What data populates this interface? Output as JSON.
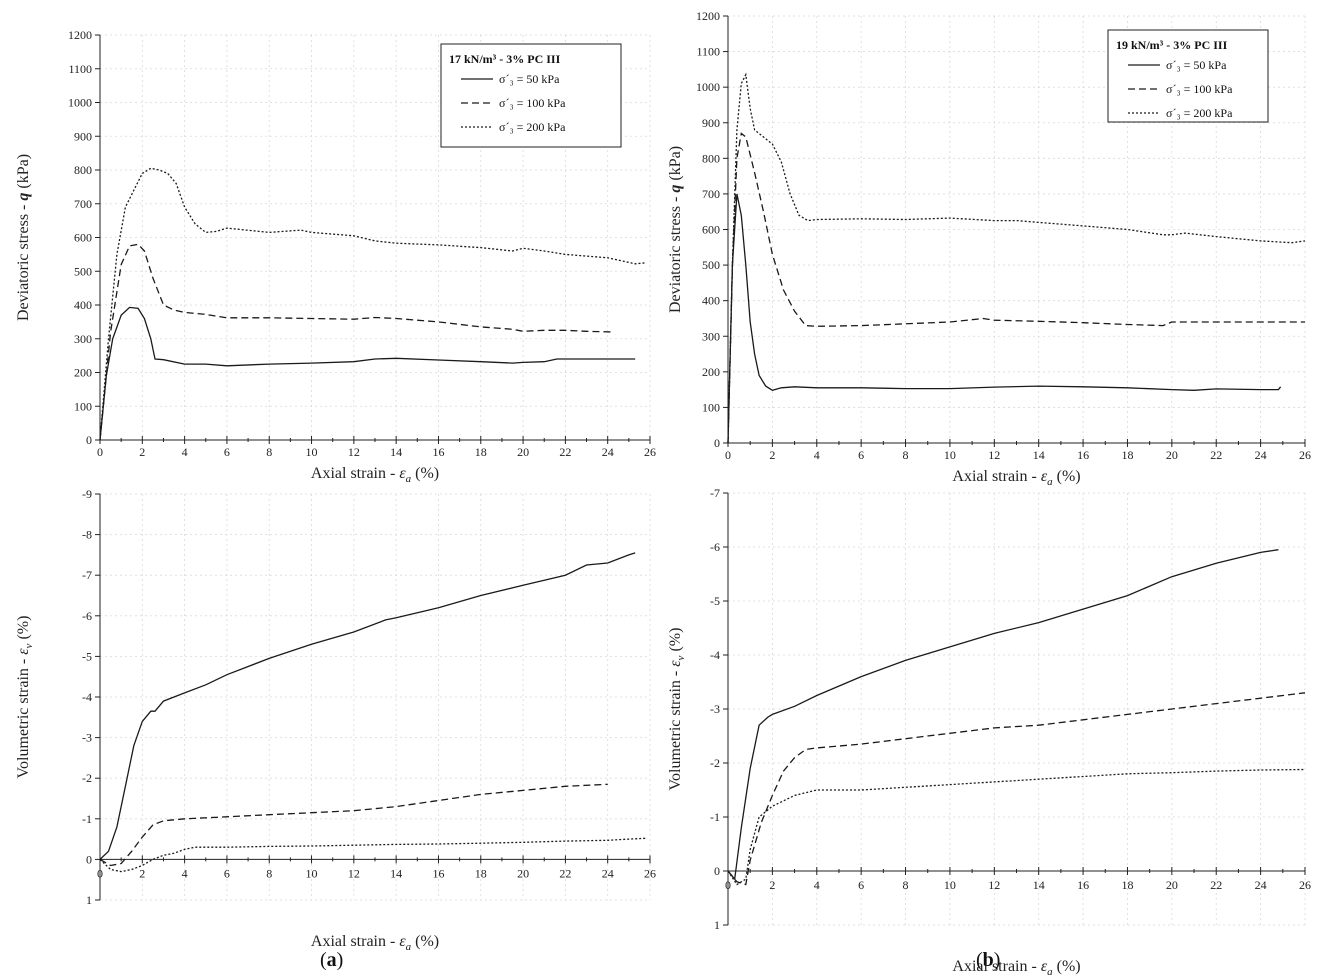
{
  "figure": {
    "captions": [
      "(a)",
      "(b)"
    ],
    "caption_letters": [
      "a",
      "b"
    ]
  },
  "chart_data": [
    {
      "id": "a-top",
      "type": "line",
      "xlabel": "Axial strain - ε_a (%)",
      "ylabel": "Deviatoric stress - q (kPa)",
      "xlim": [
        0,
        26
      ],
      "ylim": [
        0,
        1200
      ],
      "xticks": [
        0,
        2,
        4,
        6,
        8,
        10,
        12,
        14,
        16,
        18,
        20,
        22,
        24,
        26
      ],
      "yticks": [
        0,
        100,
        200,
        300,
        400,
        500,
        600,
        700,
        800,
        900,
        1000,
        1100,
        1200
      ],
      "legend": {
        "title": "17 kN/m³ -  3% PC III",
        "position": "top-right"
      },
      "series": [
        {
          "name": "σ´₃ = 50 kPa",
          "dash": "solid",
          "x": [
            0,
            0.3,
            0.6,
            1.0,
            1.4,
            1.8,
            2.1,
            2.4,
            2.6,
            3.0,
            4.0,
            5.0,
            6.0,
            8.0,
            10.0,
            12.0,
            13.0,
            14.0,
            16.0,
            18.0,
            19.5,
            20.0,
            21.0,
            21.6,
            22.0,
            24.0,
            25.3
          ],
          "y": [
            0,
            190,
            300,
            370,
            393,
            390,
            360,
            300,
            240,
            238,
            225,
            225,
            220,
            225,
            228,
            232,
            240,
            242,
            237,
            232,
            228,
            230,
            232,
            240,
            240,
            240,
            240
          ]
        },
        {
          "name": "σ´₃ = 100 kPa",
          "dash": "dashed",
          "x": [
            0,
            0.5,
            1.0,
            1.4,
            1.8,
            2.1,
            2.5,
            3.0,
            3.5,
            4.0,
            5.0,
            6.0,
            8.0,
            10.0,
            12.0,
            13.0,
            14.0,
            16.0,
            18.0,
            19.5,
            20.0,
            21.0,
            22.0,
            23.0,
            24.2
          ],
          "y": [
            0,
            320,
            520,
            575,
            580,
            560,
            480,
            400,
            385,
            378,
            372,
            362,
            362,
            360,
            358,
            363,
            360,
            350,
            335,
            328,
            322,
            325,
            325,
            322,
            320
          ]
        },
        {
          "name": "σ´₃ = 200 kPa",
          "dash": "dotted",
          "x": [
            0,
            0.4,
            0.8,
            1.2,
            1.6,
            2.0,
            2.4,
            2.8,
            3.2,
            3.6,
            4.0,
            4.5,
            5.0,
            5.5,
            6.0,
            8.0,
            9.5,
            10.0,
            12.0,
            13.0,
            14.0,
            16.0,
            18.0,
            19.5,
            20.0,
            21.0,
            22.0,
            24.0,
            25.3,
            25.8
          ],
          "y": [
            0,
            300,
            550,
            690,
            740,
            790,
            805,
            800,
            790,
            760,
            690,
            640,
            615,
            618,
            628,
            615,
            622,
            615,
            605,
            590,
            583,
            578,
            570,
            560,
            568,
            560,
            550,
            540,
            522,
            525
          ]
        }
      ]
    },
    {
      "id": "b-top",
      "type": "line",
      "xlabel": "Axial strain - ε_a (%)",
      "ylabel": "Deviatoric stress - q (kPa)",
      "xlim": [
        0,
        26
      ],
      "ylim": [
        0,
        1200
      ],
      "xticks": [
        0,
        2,
        4,
        6,
        8,
        10,
        12,
        14,
        16,
        18,
        20,
        22,
        24,
        26
      ],
      "yticks": [
        0,
        100,
        200,
        300,
        400,
        500,
        600,
        700,
        800,
        900,
        1000,
        1100,
        1200
      ],
      "legend": {
        "title": "19 kN/m³ -  3% PC III",
        "position": "top-right"
      },
      "series": [
        {
          "name": "σ´₃ = 50 kPa",
          "dash": "solid",
          "x": [
            0,
            0.2,
            0.4,
            0.6,
            0.8,
            1.0,
            1.2,
            1.4,
            1.7,
            2.0,
            2.4,
            3.0,
            4.0,
            6.0,
            8.0,
            10.0,
            12.0,
            14.0,
            16.0,
            18.0,
            20.0,
            21.0,
            22.0,
            24.0,
            24.8,
            24.9
          ],
          "y": [
            0,
            500,
            700,
            640,
            500,
            340,
            250,
            190,
            160,
            148,
            155,
            158,
            155,
            155,
            153,
            153,
            157,
            160,
            158,
            155,
            150,
            148,
            152,
            150,
            150,
            158
          ]
        },
        {
          "name": "σ´₃ = 100 kPa",
          "dash": "dashed",
          "x": [
            0,
            0.2,
            0.4,
            0.6,
            0.8,
            1.2,
            1.6,
            2.0,
            2.5,
            3.0,
            3.5,
            4.0,
            6.0,
            8.0,
            10.0,
            11.5,
            12.0,
            14.0,
            16.0,
            18.0,
            19.6,
            20.0,
            22.0,
            24.0,
            26.0
          ],
          "y": [
            0,
            500,
            800,
            870,
            860,
            760,
            650,
            530,
            430,
            370,
            330,
            328,
            330,
            335,
            340,
            350,
            345,
            342,
            338,
            333,
            330,
            340,
            340,
            340,
            340
          ]
        },
        {
          "name": "σ´₃ = 200 kPa",
          "dash": "dotted",
          "x": [
            0,
            0.2,
            0.4,
            0.6,
            0.8,
            1.0,
            1.2,
            1.6,
            2.0,
            2.4,
            2.8,
            3.2,
            3.6,
            4.0,
            6.0,
            8.0,
            10.0,
            12.0,
            13.0,
            14.0,
            16.0,
            18.0,
            19.6,
            20.0,
            20.6,
            22.0,
            24.0,
            25.4,
            26.0
          ],
          "y": [
            0,
            500,
            880,
            1010,
            1035,
            940,
            880,
            860,
            840,
            790,
            700,
            640,
            625,
            628,
            630,
            628,
            632,
            625,
            625,
            620,
            610,
            600,
            585,
            585,
            590,
            580,
            568,
            563,
            568
          ]
        }
      ]
    },
    {
      "id": "a-bottom",
      "type": "line",
      "xlabel": "Axial strain - ε_a (%)",
      "ylabel": "Volumetric strain - ε_v (%)",
      "xlim": [
        0,
        26
      ],
      "ylim": [
        1,
        -9
      ],
      "y_inverted": true,
      "xticks": [
        0,
        2,
        4,
        6,
        8,
        10,
        12,
        14,
        16,
        18,
        20,
        22,
        24,
        26
      ],
      "yticks": [
        1,
        0,
        -1,
        -2,
        -3,
        -4,
        -5,
        -6,
        -7,
        -8,
        -9
      ],
      "series": [
        {
          "name": "σ´₃ = 50 kPa",
          "dash": "solid",
          "x": [
            0,
            0.4,
            0.8,
            1.2,
            1.6,
            2.0,
            2.4,
            2.6,
            3.0,
            3.5,
            4.0,
            5.0,
            6.0,
            8.0,
            10.0,
            12.0,
            13.5,
            14.0,
            16.0,
            18.0,
            20.0,
            22.0,
            23.0,
            24.0,
            25.0,
            25.3
          ],
          "y": [
            0,
            -0.2,
            -0.8,
            -1.8,
            -2.8,
            -3.4,
            -3.65,
            -3.65,
            -3.9,
            -4.0,
            -4.1,
            -4.3,
            -4.55,
            -4.95,
            -5.3,
            -5.6,
            -5.9,
            -5.95,
            -6.2,
            -6.5,
            -6.75,
            -7.0,
            -7.25,
            -7.3,
            -7.5,
            -7.55
          ]
        },
        {
          "name": "σ´₃ = 100 kPa",
          "dash": "dashed",
          "x": [
            0,
            0.5,
            1.0,
            1.5,
            2.0,
            2.5,
            3.0,
            4.0,
            6.0,
            8.0,
            10.0,
            12.0,
            14.0,
            16.0,
            18.0,
            20.0,
            22.0,
            24.0
          ],
          "y": [
            0,
            0.15,
            0.1,
            -0.2,
            -0.55,
            -0.85,
            -0.95,
            -1.0,
            -1.05,
            -1.1,
            -1.15,
            -1.2,
            -1.3,
            -1.45,
            -1.6,
            -1.7,
            -1.8,
            -1.85
          ]
        },
        {
          "name": "σ´₃ = 200 kPa",
          "dash": "dotted",
          "x": [
            0,
            0.5,
            1.0,
            1.5,
            2.0,
            2.5,
            3.0,
            3.5,
            4.0,
            4.5,
            6.0,
            8.0,
            10.0,
            12.0,
            14.0,
            16.0,
            18.0,
            20.0,
            22.0,
            24.0,
            25.0,
            25.8
          ],
          "y": [
            0,
            0.25,
            0.3,
            0.25,
            0.15,
            0.0,
            -0.1,
            -0.15,
            -0.25,
            -0.3,
            -0.3,
            -0.32,
            -0.33,
            -0.35,
            -0.37,
            -0.38,
            -0.4,
            -0.42,
            -0.45,
            -0.47,
            -0.5,
            -0.52
          ]
        }
      ]
    },
    {
      "id": "b-bottom",
      "type": "line",
      "xlabel": "Axial strain - ε_a (%)",
      "ylabel": "Volumetric strain - ε_v (%)",
      "xlim": [
        0,
        26
      ],
      "ylim": [
        1,
        -7
      ],
      "y_inverted": true,
      "xticks": [
        0,
        2,
        4,
        6,
        8,
        10,
        12,
        14,
        16,
        18,
        20,
        22,
        24,
        26
      ],
      "yticks": [
        1,
        0,
        -1,
        -2,
        -3,
        -4,
        -5,
        -6,
        -7
      ],
      "series": [
        {
          "name": "σ´₃ = 50 kPa",
          "dash": "solid",
          "x": [
            0,
            0.3,
            0.6,
            1.0,
            1.4,
            1.8,
            2.0,
            3.0,
            4.0,
            6.0,
            8.0,
            10.0,
            12.0,
            14.0,
            16.0,
            18.0,
            20.0,
            22.0,
            24.0,
            24.8
          ],
          "y": [
            0,
            0.15,
            -0.8,
            -1.9,
            -2.7,
            -2.85,
            -2.9,
            -3.05,
            -3.25,
            -3.6,
            -3.9,
            -4.15,
            -4.4,
            -4.6,
            -4.85,
            -5.1,
            -5.45,
            -5.7,
            -5.9,
            -5.95
          ]
        },
        {
          "name": "σ´₃ = 100 kPa",
          "dash": "dashed",
          "x": [
            0,
            0.4,
            0.8,
            1.0,
            1.5,
            2.0,
            2.5,
            3.0,
            3.5,
            4.0,
            6.0,
            8.0,
            10.0,
            12.0,
            14.0,
            16.0,
            18.0,
            20.0,
            22.0,
            24.0,
            26.0
          ],
          "y": [
            0,
            0.2,
            0.25,
            -0.2,
            -0.9,
            -1.4,
            -1.85,
            -2.1,
            -2.25,
            -2.28,
            -2.35,
            -2.45,
            -2.55,
            -2.65,
            -2.7,
            -2.8,
            -2.9,
            -3.0,
            -3.1,
            -3.2,
            -3.3
          ]
        },
        {
          "name": "σ´₃ = 200 kPa",
          "dash": "dotted",
          "x": [
            0,
            0.4,
            0.8,
            1.0,
            1.4,
            2.0,
            2.5,
            3.0,
            3.5,
            4.0,
            6.0,
            8.0,
            10.0,
            12.0,
            14.0,
            16.0,
            18.0,
            20.0,
            22.0,
            24.0,
            26.0
          ],
          "y": [
            0,
            0.25,
            0.15,
            -0.4,
            -1.0,
            -1.2,
            -1.3,
            -1.4,
            -1.45,
            -1.5,
            -1.5,
            -1.55,
            -1.6,
            -1.65,
            -1.7,
            -1.75,
            -1.8,
            -1.82,
            -1.85,
            -1.87,
            -1.88
          ]
        }
      ]
    }
  ]
}
